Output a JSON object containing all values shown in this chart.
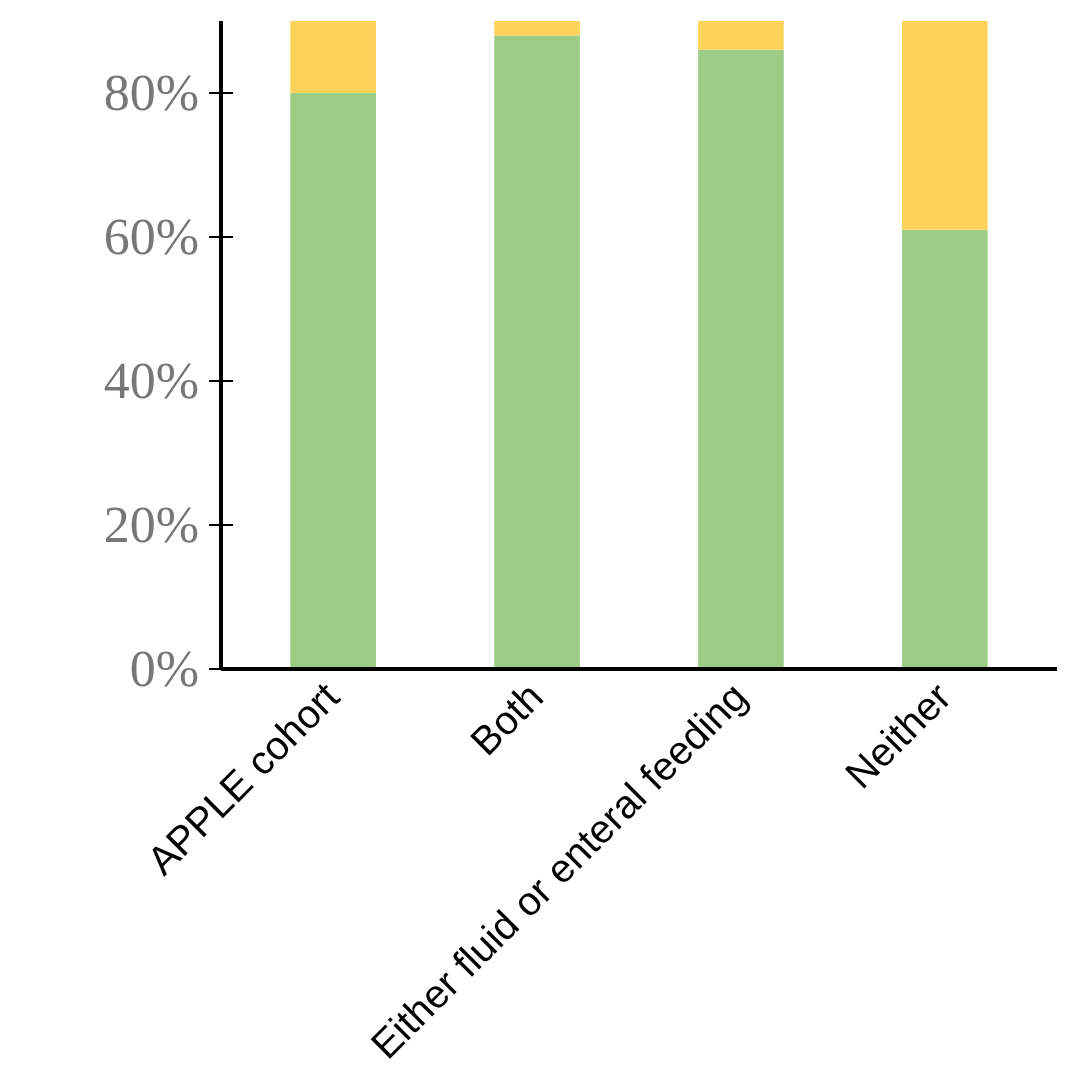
{
  "chart_data": {
    "type": "bar",
    "stacked": true,
    "categories": [
      "APPLE cohort",
      "Both",
      "Either fluid or enteral feeding",
      "Neither"
    ],
    "series": [
      {
        "color": "#9dcc86",
        "values": [
          80,
          88,
          86,
          61
        ]
      },
      {
        "color": "#fcd25a",
        "values": [
          10,
          2,
          4,
          29
        ]
      }
    ],
    "ylim": [
      0,
      90
    ],
    "yticks": [
      {
        "value": 0,
        "label": "0%"
      },
      {
        "value": 20,
        "label": "20%"
      },
      {
        "value": 40,
        "label": "40%"
      },
      {
        "value": 60,
        "label": "60%"
      },
      {
        "value": 80,
        "label": "80%"
      }
    ],
    "grid": false
  }
}
